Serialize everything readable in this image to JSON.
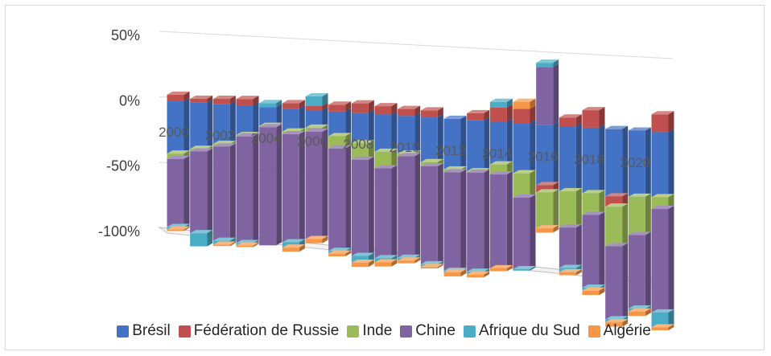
{
  "chart_data": {
    "type": "bar",
    "subtype": "3d-stacked-column",
    "title": "",
    "xlabel": "",
    "ylabel": "",
    "ylim": [
      -100,
      50
    ],
    "y_ticks": [
      "50%",
      "0%",
      "-50%",
      "-100%"
    ],
    "x_tick_labels": [
      "2000",
      "2002",
      "2004",
      "2006",
      "2008",
      "2010",
      "2012",
      "2014",
      "2016",
      "2018",
      "2020"
    ],
    "legend_position": "bottom",
    "categories": [
      2000,
      2001,
      2002,
      2003,
      2004,
      2005,
      2006,
      2007,
      2008,
      2009,
      2010,
      2011,
      2012,
      2013,
      2014,
      2015,
      2016,
      2017,
      2018,
      2019,
      2020,
      2021
    ],
    "series": [
      {
        "name": "Brésil",
        "color": "#4472c4",
        "values": [
          -40,
          -35,
          -30,
          -22,
          -14,
          -17,
          -13,
          -18,
          -22,
          -27,
          -27,
          -32,
          -36,
          -36,
          -30,
          -35,
          -42,
          -45,
          -45,
          -46,
          -45,
          -44
        ]
      },
      {
        "name": "Fédération de Russie",
        "color": "#c0504d",
        "values": [
          5,
          3,
          4,
          5,
          0,
          4,
          3,
          5,
          7,
          6,
          5,
          5,
          0,
          5,
          10,
          10,
          -5,
          6,
          12,
          -7,
          0,
          12
        ]
      },
      {
        "name": "Inde",
        "color": "#9bbb59",
        "values": [
          -4,
          -2,
          -2,
          -1,
          -1,
          -2,
          -3,
          -9,
          -12,
          -12,
          -2,
          -3,
          -2,
          -1,
          -7,
          -17,
          -25,
          -25,
          -15,
          -27,
          -26,
          -8
        ]
      },
      {
        "name": "Chine",
        "color": "#8064a2",
        "values": [
          -52,
          -62,
          -71,
          -80,
          -88,
          -80,
          -79,
          -75,
          -70,
          -65,
          -73,
          -70,
          -70,
          -70,
          -66,
          -50,
          40,
          -28,
          -50,
          -50,
          -50,
          -70
        ]
      },
      {
        "name": "Afrique du Sud",
        "color": "#4bacc6",
        "values": [
          -2,
          -10,
          -3,
          -2,
          3,
          -4,
          7,
          -2,
          -5,
          -3,
          -2,
          -2,
          -1,
          -2,
          4,
          -1,
          3,
          -3,
          -2,
          -2,
          -2,
          -10
        ]
      },
      {
        "name": "Algérie",
        "color": "#f79646",
        "values": [
          -1,
          0,
          -1,
          -1,
          0,
          -3,
          -3,
          -2,
          -3,
          -3,
          -2,
          -1,
          -3,
          -2,
          -2,
          5,
          -3,
          -2,
          -3,
          -3,
          -3,
          -2
        ]
      }
    ]
  }
}
